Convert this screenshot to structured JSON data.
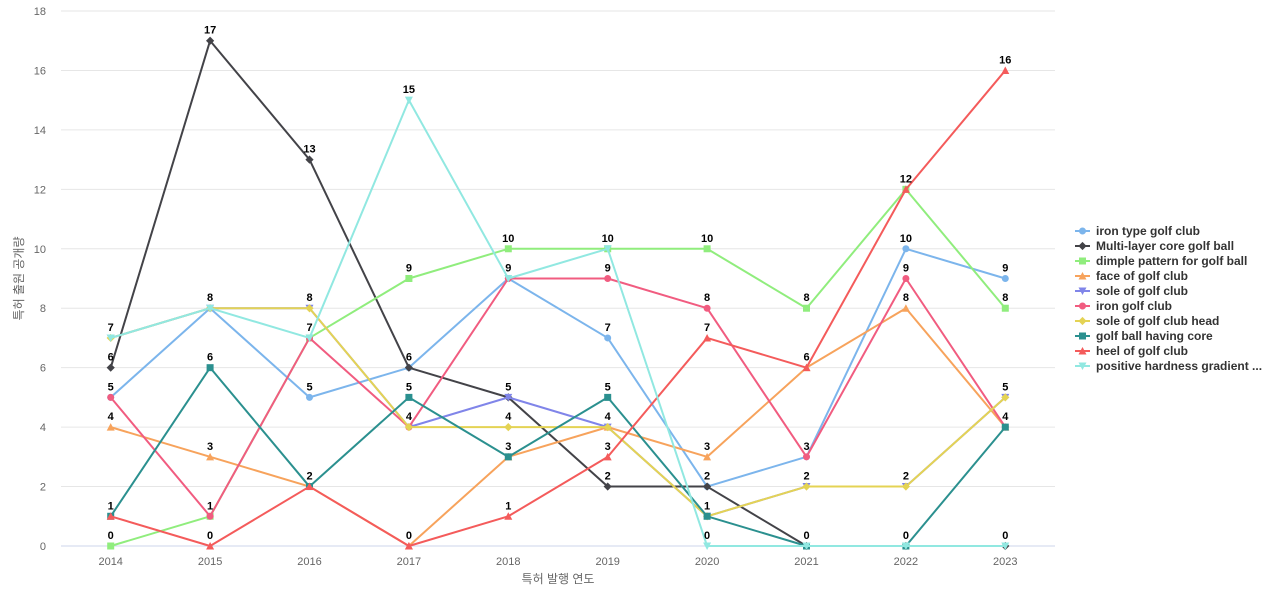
{
  "chart_data": {
    "type": "line",
    "xlabel": "특허 발행 연도",
    "ylabel": "특허 출원 공개량",
    "ylim": [
      0,
      18
    ],
    "yticks": [
      0,
      2,
      4,
      6,
      8,
      10,
      12,
      14,
      16,
      18
    ],
    "grid": true,
    "legend_position": "right",
    "categories": [
      "2014",
      "2015",
      "2016",
      "2017",
      "2018",
      "2019",
      "2020",
      "2021",
      "2022",
      "2023"
    ],
    "series": [
      {
        "name": "iron type golf club",
        "color": "#7cb5ec",
        "marker": "circle",
        "values": [
          5,
          8,
          5,
          6,
          9,
          7,
          2,
          3,
          10,
          9
        ]
      },
      {
        "name": "Multi-layer core golf ball",
        "color": "#434348",
        "marker": "diamond",
        "values": [
          6,
          17,
          13,
          6,
          5,
          2,
          2,
          0,
          0,
          0
        ]
      },
      {
        "name": "dimple pattern for golf ball",
        "color": "#90ed7d",
        "marker": "square",
        "values": [
          0,
          1,
          7,
          9,
          10,
          10,
          10,
          8,
          12,
          8
        ]
      },
      {
        "name": "face of golf club",
        "color": "#f7a35c",
        "marker": "triangle",
        "values": [
          4,
          3,
          2,
          0,
          3,
          4,
          3,
          6,
          8,
          4
        ]
      },
      {
        "name": "sole of golf club",
        "color": "#8085e9",
        "marker": "triangle-down",
        "values": [
          7,
          8,
          8,
          4,
          5,
          4,
          1,
          2,
          2,
          5
        ]
      },
      {
        "name": "iron golf club",
        "color": "#f15c80",
        "marker": "circle",
        "values": [
          5,
          1,
          7,
          4,
          9,
          9,
          8,
          3,
          9,
          4
        ]
      },
      {
        "name": "sole of golf club head",
        "color": "#e4d354",
        "marker": "diamond",
        "values": [
          7,
          8,
          8,
          4,
          4,
          4,
          1,
          2,
          2,
          5
        ]
      },
      {
        "name": "golf ball having core",
        "color": "#2b908f",
        "marker": "square",
        "values": [
          1,
          6,
          2,
          5,
          3,
          5,
          1,
          0,
          0,
          4
        ]
      },
      {
        "name": "heel of golf club",
        "color": "#f45b5b",
        "marker": "triangle",
        "values": [
          1,
          0,
          2,
          0,
          1,
          3,
          7,
          6,
          12,
          16
        ]
      },
      {
        "name": "positive hardness gradient ...",
        "color": "#91e8e1",
        "marker": "triangle-down",
        "values": [
          7,
          8,
          7,
          15,
          9,
          10,
          0,
          0,
          0,
          0
        ]
      }
    ],
    "data_labels": [
      {
        "text": "7",
        "category": "2014",
        "value": 7
      },
      {
        "text": "6",
        "category": "2014",
        "value": 6
      },
      {
        "text": "5",
        "category": "2014",
        "value": 5
      },
      {
        "text": "4",
        "category": "2014",
        "value": 4
      },
      {
        "text": "1",
        "category": "2014",
        "value": 1
      },
      {
        "text": "0",
        "category": "2014",
        "value": 0
      },
      {
        "text": "17",
        "category": "2015",
        "value": 17
      },
      {
        "text": "8",
        "category": "2015",
        "value": 8
      },
      {
        "text": "6",
        "category": "2015",
        "value": 6
      },
      {
        "text": "3",
        "category": "2015",
        "value": 3
      },
      {
        "text": "1",
        "category": "2015",
        "value": 1
      },
      {
        "text": "0",
        "category": "2015",
        "value": 0
      },
      {
        "text": "13",
        "category": "2016",
        "value": 13
      },
      {
        "text": "8",
        "category": "2016",
        "value": 8
      },
      {
        "text": "7",
        "category": "2016",
        "value": 7
      },
      {
        "text": "5",
        "category": "2016",
        "value": 5
      },
      {
        "text": "2",
        "category": "2016",
        "value": 2
      },
      {
        "text": "15",
        "category": "2017",
        "value": 15
      },
      {
        "text": "9",
        "category": "2017",
        "value": 9
      },
      {
        "text": "6",
        "category": "2017",
        "value": 6
      },
      {
        "text": "5",
        "category": "2017",
        "value": 5
      },
      {
        "text": "4",
        "category": "2017",
        "value": 4
      },
      {
        "text": "0",
        "category": "2017",
        "value": 0
      },
      {
        "text": "10",
        "category": "2018",
        "value": 10
      },
      {
        "text": "9",
        "category": "2018",
        "value": 9
      },
      {
        "text": "5",
        "category": "2018",
        "value": 5
      },
      {
        "text": "4",
        "category": "2018",
        "value": 4
      },
      {
        "text": "3",
        "category": "2018",
        "value": 3
      },
      {
        "text": "1",
        "category": "2018",
        "value": 1
      },
      {
        "text": "10",
        "category": "2019",
        "value": 10
      },
      {
        "text": "9",
        "category": "2019",
        "value": 9
      },
      {
        "text": "7",
        "category": "2019",
        "value": 7
      },
      {
        "text": "5",
        "category": "2019",
        "value": 5
      },
      {
        "text": "4",
        "category": "2019",
        "value": 4
      },
      {
        "text": "3",
        "category": "2019",
        "value": 3
      },
      {
        "text": "2",
        "category": "2019",
        "value": 2
      },
      {
        "text": "10",
        "category": "2020",
        "value": 10
      },
      {
        "text": "8",
        "category": "2020",
        "value": 8
      },
      {
        "text": "7",
        "category": "2020",
        "value": 7
      },
      {
        "text": "3",
        "category": "2020",
        "value": 3
      },
      {
        "text": "2",
        "category": "2020",
        "value": 2
      },
      {
        "text": "1",
        "category": "2020",
        "value": 1
      },
      {
        "text": "0",
        "category": "2020",
        "value": 0
      },
      {
        "text": "8",
        "category": "2021",
        "value": 8
      },
      {
        "text": "6",
        "category": "2021",
        "value": 6
      },
      {
        "text": "3",
        "category": "2021",
        "value": 3
      },
      {
        "text": "2",
        "category": "2021",
        "value": 2
      },
      {
        "text": "0",
        "category": "2021",
        "value": 0
      },
      {
        "text": "12",
        "category": "2022",
        "value": 12
      },
      {
        "text": "10",
        "category": "2022",
        "value": 10
      },
      {
        "text": "9",
        "category": "2022",
        "value": 9
      },
      {
        "text": "8",
        "category": "2022",
        "value": 8
      },
      {
        "text": "2",
        "category": "2022",
        "value": 2
      },
      {
        "text": "0",
        "category": "2022",
        "value": 0
      },
      {
        "text": "16",
        "category": "2023",
        "value": 16
      },
      {
        "text": "9",
        "category": "2023",
        "value": 9
      },
      {
        "text": "8",
        "category": "2023",
        "value": 8
      },
      {
        "text": "5",
        "category": "2023",
        "value": 5
      },
      {
        "text": "4",
        "category": "2023",
        "value": 4
      },
      {
        "text": "0",
        "category": "2023",
        "value": 0
      }
    ]
  }
}
